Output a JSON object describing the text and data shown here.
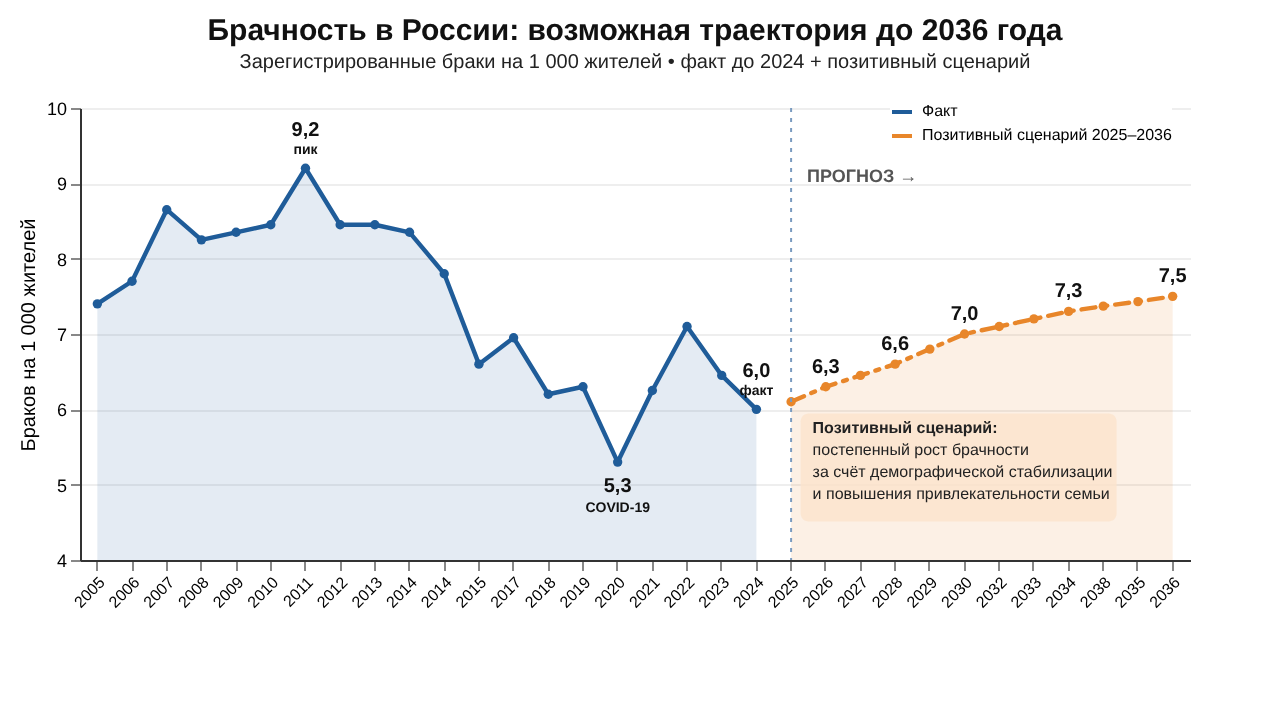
{
  "chart_data": {
    "type": "area",
    "title": "Брачность в России: возможная траектория до 2036 года",
    "subtitle": "Зарегистрированные браки на 1 000 жителей • факт до 2024 + позитивный сценарий",
    "ylabel": "Браков на 1 000 жителей",
    "categories": [
      "2005",
      "2006",
      "2007",
      "2008",
      "2009",
      "2010",
      "2011",
      "2012",
      "2013",
      "2014",
      "2014",
      "2015",
      "2017",
      "2018",
      "2019",
      "2020",
      "2021",
      "2022",
      "2023",
      "2024",
      "2025",
      "2026",
      "2027",
      "2028",
      "2029",
      "2030",
      "2032",
      "2033",
      "2034",
      "2038",
      "2035",
      "2036"
    ],
    "series": [
      {
        "name": "Факт",
        "color": "#1f5c99",
        "line_style": "solid",
        "values": [
          7.4,
          7.7,
          8.65,
          8.25,
          8.35,
          8.45,
          9.2,
          8.45,
          8.45,
          8.35,
          7.8,
          6.6,
          6.95,
          6.2,
          6.3,
          5.3,
          6.25,
          7.1,
          6.45,
          6.0,
          null,
          null,
          null,
          null,
          null,
          null,
          null,
          null,
          null,
          null,
          null,
          null
        ],
        "value_labels": [
          null,
          null,
          null,
          null,
          null,
          null,
          "9,2",
          null,
          null,
          null,
          null,
          null,
          null,
          null,
          null,
          "5,3",
          null,
          null,
          null,
          "6,0",
          null,
          null,
          null,
          null,
          null,
          null,
          null,
          null,
          null,
          null,
          null,
          null
        ]
      },
      {
        "name": "Позитивный сценарий 2025–2036",
        "color": "#e8862a",
        "line_style": "dashed",
        "values": [
          null,
          null,
          null,
          null,
          null,
          null,
          null,
          null,
          null,
          null,
          null,
          null,
          null,
          null,
          null,
          null,
          null,
          null,
          null,
          null,
          6.1,
          6.3,
          6.45,
          6.6,
          6.8,
          7.0,
          7.1,
          7.2,
          7.3,
          7.37,
          7.43,
          7.5
        ],
        "value_labels": [
          null,
          null,
          null,
          null,
          null,
          null,
          null,
          null,
          null,
          null,
          null,
          null,
          null,
          null,
          null,
          null,
          null,
          null,
          null,
          null,
          null,
          "6,3",
          null,
          "6,6",
          null,
          "7,0",
          null,
          null,
          "7,3",
          null,
          null,
          "7,5"
        ]
      }
    ],
    "ylim": [
      4,
      10
    ],
    "yticks": [
      4,
      5,
      6,
      7,
      8,
      9,
      10
    ],
    "grid": "y",
    "legend": "top right",
    "marker": "circle",
    "ref_lines": [
      {
        "axis": "x",
        "value": "2025",
        "label": "ПРОГНОЗ →"
      }
    ],
    "annotations": [
      {
        "text": "пик",
        "x": "2011",
        "y": 9.2
      },
      {
        "text": "COVID-19",
        "x": "2020",
        "y": 5.3
      },
      {
        "text": "факт",
        "x": "2024",
        "y": 6.0
      },
      "Позитивный сценарий:\nпостепенный рост брачности\nза счёт демографической стабилизации\nи повышения привлекательности семьи"
    ]
  }
}
